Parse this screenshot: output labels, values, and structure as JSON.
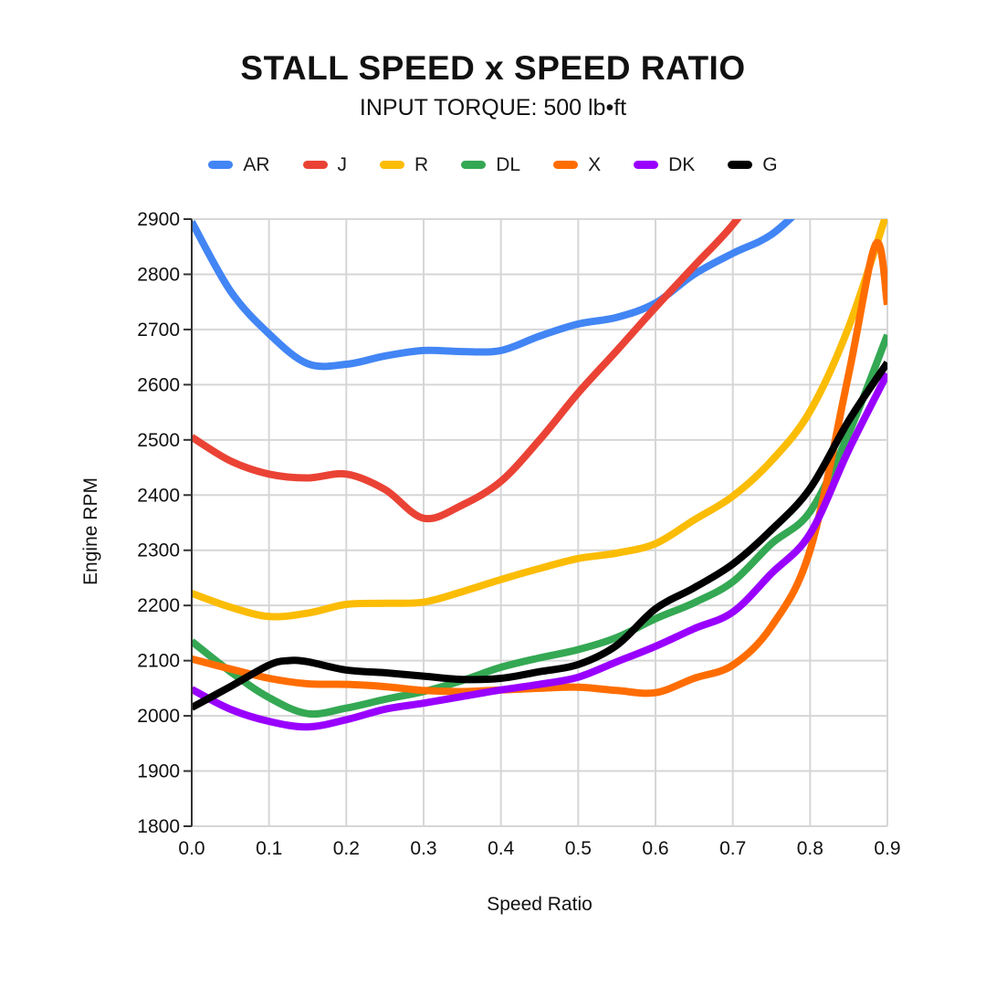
{
  "header": {
    "title": "STALL SPEED x SPEED RATIO",
    "subtitle": "INPUT TORQUE: 500 lb•ft"
  },
  "chart_data": {
    "type": "line",
    "title": "STALL SPEED x SPEED RATIO",
    "subtitle": "INPUT TORQUE: 500 lb•ft",
    "xlabel": "Speed Ratio",
    "ylabel": "Engine RPM",
    "xlim": [
      0.0,
      0.9
    ],
    "ylim": [
      1800,
      2900
    ],
    "x_ticks": [
      "0.0",
      "0.1",
      "0.2",
      "0.3",
      "0.4",
      "0.5",
      "0.6",
      "0.7",
      "0.8",
      "0.9"
    ],
    "y_ticks": [
      "2900",
      "2800",
      "2700",
      "2600",
      "2500",
      "2400",
      "2300",
      "2200",
      "2100",
      "2000",
      "1900",
      "1800"
    ],
    "grid": true,
    "legend_position": "top",
    "grid_color": "#d6d6d6",
    "axis_color": "#333333",
    "series": [
      {
        "name": "AR",
        "color": "#4285f4",
        "points": [
          [
            0,
            2895
          ],
          [
            0.05,
            2770
          ],
          [
            0.1,
            2692
          ],
          [
            0.15,
            2638
          ],
          [
            0.2,
            2637
          ],
          [
            0.25,
            2652
          ],
          [
            0.3,
            2662
          ],
          [
            0.35,
            2660
          ],
          [
            0.4,
            2662
          ],
          [
            0.45,
            2688
          ],
          [
            0.5,
            2710
          ],
          [
            0.55,
            2722
          ],
          [
            0.6,
            2748
          ],
          [
            0.65,
            2800
          ],
          [
            0.7,
            2838
          ],
          [
            0.75,
            2872
          ],
          [
            0.8,
            2935
          ]
        ]
      },
      {
        "name": "J",
        "color": "#ea4335",
        "points": [
          [
            0,
            2505
          ],
          [
            0.05,
            2462
          ],
          [
            0.1,
            2438
          ],
          [
            0.15,
            2431
          ],
          [
            0.2,
            2438
          ],
          [
            0.25,
            2410
          ],
          [
            0.3,
            2358
          ],
          [
            0.35,
            2382
          ],
          [
            0.4,
            2425
          ],
          [
            0.45,
            2500
          ],
          [
            0.5,
            2585
          ],
          [
            0.55,
            2662
          ],
          [
            0.6,
            2740
          ],
          [
            0.65,
            2815
          ],
          [
            0.7,
            2890
          ],
          [
            0.75,
            2985
          ]
        ]
      },
      {
        "name": "R",
        "color": "#fbbc04",
        "points": [
          [
            0,
            2222
          ],
          [
            0.05,
            2197
          ],
          [
            0.1,
            2180
          ],
          [
            0.15,
            2186
          ],
          [
            0.2,
            2202
          ],
          [
            0.25,
            2204
          ],
          [
            0.3,
            2206
          ],
          [
            0.35,
            2225
          ],
          [
            0.4,
            2247
          ],
          [
            0.45,
            2267
          ],
          [
            0.5,
            2285
          ],
          [
            0.55,
            2295
          ],
          [
            0.6,
            2312
          ],
          [
            0.65,
            2355
          ],
          [
            0.7,
            2398
          ],
          [
            0.75,
            2462
          ],
          [
            0.8,
            2552
          ],
          [
            0.85,
            2705
          ],
          [
            0.9,
            2915
          ]
        ]
      },
      {
        "name": "DL",
        "color": "#34a853",
        "points": [
          [
            0,
            2135
          ],
          [
            0.05,
            2080
          ],
          [
            0.1,
            2033
          ],
          [
            0.15,
            2004
          ],
          [
            0.2,
            2014
          ],
          [
            0.25,
            2030
          ],
          [
            0.3,
            2044
          ],
          [
            0.35,
            2064
          ],
          [
            0.4,
            2088
          ],
          [
            0.45,
            2105
          ],
          [
            0.5,
            2120
          ],
          [
            0.55,
            2142
          ],
          [
            0.6,
            2176
          ],
          [
            0.65,
            2205
          ],
          [
            0.7,
            2243
          ],
          [
            0.75,
            2312
          ],
          [
            0.8,
            2370
          ],
          [
            0.85,
            2512
          ],
          [
            0.9,
            2690
          ]
        ]
      },
      {
        "name": "X",
        "color": "#ff6d01",
        "points": [
          [
            0,
            2103
          ],
          [
            0.05,
            2085
          ],
          [
            0.1,
            2068
          ],
          [
            0.15,
            2058
          ],
          [
            0.2,
            2057
          ],
          [
            0.25,
            2053
          ],
          [
            0.3,
            2046
          ],
          [
            0.35,
            2044
          ],
          [
            0.4,
            2047
          ],
          [
            0.45,
            2050
          ],
          [
            0.5,
            2052
          ],
          [
            0.55,
            2046
          ],
          [
            0.6,
            2042
          ],
          [
            0.65,
            2068
          ],
          [
            0.7,
            2092
          ],
          [
            0.75,
            2162
          ],
          [
            0.8,
            2300
          ],
          [
            0.85,
            2620
          ],
          [
            0.885,
            2855
          ],
          [
            0.9,
            2745
          ]
        ]
      },
      {
        "name": "DK",
        "color": "#9900ff",
        "points": [
          [
            0,
            2048
          ],
          [
            0.05,
            2012
          ],
          [
            0.1,
            1990
          ],
          [
            0.15,
            1980
          ],
          [
            0.2,
            1993
          ],
          [
            0.25,
            2012
          ],
          [
            0.3,
            2023
          ],
          [
            0.35,
            2035
          ],
          [
            0.4,
            2047
          ],
          [
            0.45,
            2057
          ],
          [
            0.5,
            2070
          ],
          [
            0.55,
            2098
          ],
          [
            0.6,
            2126
          ],
          [
            0.65,
            2158
          ],
          [
            0.7,
            2188
          ],
          [
            0.75,
            2258
          ],
          [
            0.8,
            2330
          ],
          [
            0.85,
            2482
          ],
          [
            0.9,
            2620
          ]
        ]
      },
      {
        "name": "G",
        "color": "#000000",
        "points": [
          [
            0,
            2015
          ],
          [
            0.05,
            2053
          ],
          [
            0.1,
            2092
          ],
          [
            0.125,
            2100
          ],
          [
            0.15,
            2098
          ],
          [
            0.2,
            2083
          ],
          [
            0.25,
            2078
          ],
          [
            0.3,
            2072
          ],
          [
            0.35,
            2066
          ],
          [
            0.4,
            2068
          ],
          [
            0.45,
            2080
          ],
          [
            0.5,
            2093
          ],
          [
            0.55,
            2128
          ],
          [
            0.6,
            2194
          ],
          [
            0.65,
            2232
          ],
          [
            0.7,
            2275
          ],
          [
            0.75,
            2337
          ],
          [
            0.8,
            2412
          ],
          [
            0.85,
            2535
          ],
          [
            0.9,
            2640
          ]
        ]
      }
    ]
  }
}
